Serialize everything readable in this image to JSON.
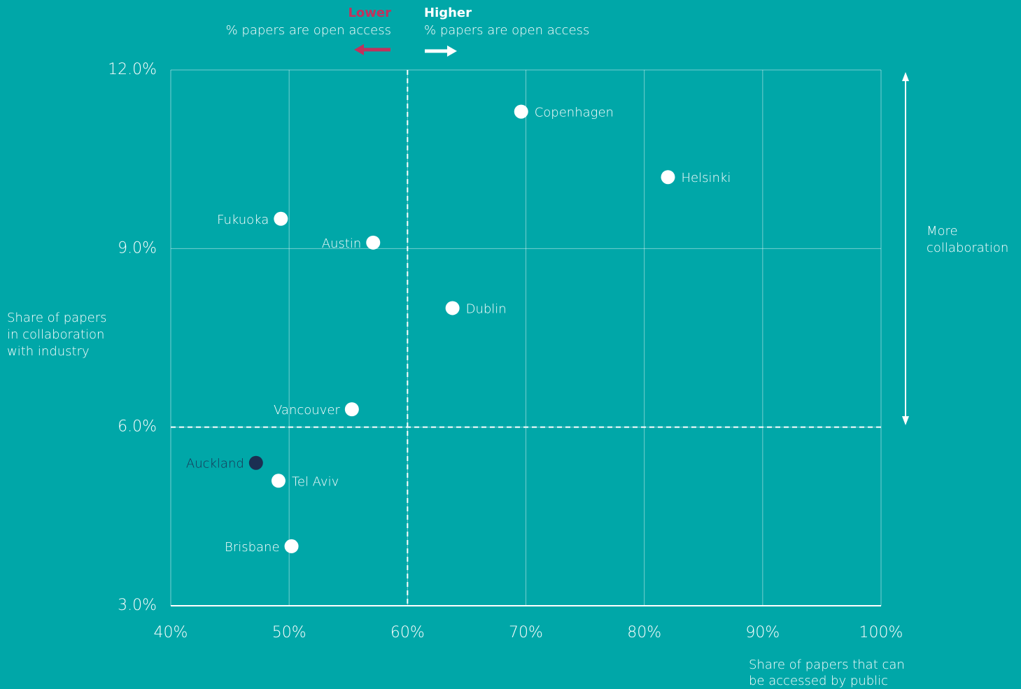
{
  "chart_data": {
    "type": "scatter",
    "labels": [
      "Copenhagen",
      "Helsinki",
      "Fukuoka",
      "Austin",
      "Dublin",
      "Vancouver",
      "Auckland",
      "Tel Aviv",
      "Brisbane"
    ],
    "x": [
      69.6,
      82.0,
      49.3,
      57.1,
      63.8,
      55.3,
      47.2,
      49.1,
      50.2
    ],
    "values": [
      11.3,
      10.2,
      9.5,
      9.1,
      8.0,
      6.3,
      5.4,
      5.1,
      4.0
    ],
    "colors": [
      "#ffffff",
      "#ffffff",
      "#ffffff",
      "#ffffff",
      "#ffffff",
      "#ffffff",
      "#1b2f52",
      "#ffffff",
      "#ffffff"
    ],
    "xlim": [
      40,
      100
    ],
    "ylim": [
      3,
      12
    ],
    "xticks": [
      {
        "value": 40,
        "label": "40%"
      },
      {
        "value": 50,
        "label": "50%"
      },
      {
        "value": 60,
        "label": "60%"
      },
      {
        "value": 70,
        "label": "70%"
      },
      {
        "value": 80,
        "label": "80%"
      },
      {
        "value": 90,
        "label": "90%"
      },
      {
        "value": 100,
        "label": "100%"
      }
    ],
    "yticks": [
      {
        "value": 3,
        "label": "3.0%"
      },
      {
        "value": 6,
        "label": "6.0%"
      },
      {
        "value": 9,
        "label": "9.0%"
      },
      {
        "value": 12,
        "label": "12.0%"
      }
    ],
    "grid": true,
    "reference_lines": {
      "x": 60,
      "y": 6
    },
    "x_label": [
      "Share of papers that can",
      "be accessed by public"
    ],
    "y_label": [
      "Share of papers",
      "in collaboration",
      "with industry"
    ],
    "annotations": {
      "lower": "Lower",
      "lower_text": "% papers are open access",
      "higher": "Higher",
      "higher_text": "% papers are open access",
      "more": [
        "More",
        "collaboration"
      ]
    }
  }
}
